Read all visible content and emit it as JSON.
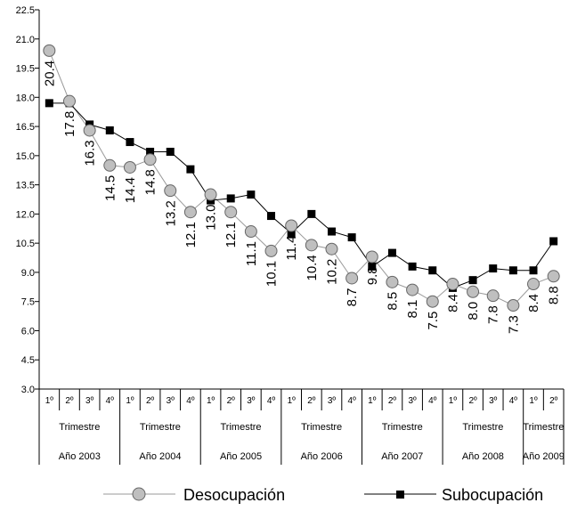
{
  "chart_data": {
    "type": "line",
    "title": "",
    "xlabel": "",
    "ylabel": "",
    "ylim": [
      3.0,
      22.5
    ],
    "y_ticks": [
      "3.0",
      "4.5",
      "6.0",
      "7.5",
      "9.0",
      "10.5",
      "12.0",
      "13.5",
      "15.0",
      "16.5",
      "18.0",
      "19.5",
      "21.0",
      "22.5"
    ],
    "quarter_labels": [
      "1º",
      "2º",
      "3º",
      "4º",
      "1º",
      "2º",
      "3º",
      "4º",
      "1º",
      "2º",
      "3º",
      "4º",
      "1º",
      "2º",
      "3º",
      "4º",
      "1º",
      "2º",
      "3º",
      "4º",
      "1º",
      "2º",
      "3º",
      "4º",
      "1º",
      "2º"
    ],
    "period_label": "Trimestre",
    "years": [
      {
        "label": "Año 2003",
        "quarters": 4
      },
      {
        "label": "Año 2004",
        "quarters": 4
      },
      {
        "label": "Año 2005",
        "quarters": 4
      },
      {
        "label": "Año 2006",
        "quarters": 4
      },
      {
        "label": "Año 2007",
        "quarters": 4
      },
      {
        "label": "Año 2008",
        "quarters": 4
      },
      {
        "label": "Año 2009",
        "quarters": 2
      }
    ],
    "series": [
      {
        "name": "Desocupación",
        "marker": "circle",
        "color": "#bfbfbf",
        "line_color": "#999999",
        "values": [
          20.4,
          17.8,
          16.3,
          14.5,
          14.4,
          14.8,
          13.2,
          12.1,
          13.0,
          12.1,
          11.1,
          10.1,
          11.4,
          10.4,
          10.2,
          8.7,
          9.8,
          8.5,
          8.1,
          7.5,
          8.4,
          8.0,
          7.8,
          7.3,
          8.4,
          8.8
        ],
        "data_labels": [
          "20.4",
          "17.8",
          "16.3",
          "14.5",
          "14.4",
          "14.8",
          "13.2",
          "12.1",
          "13.0",
          "12.1",
          "11.1",
          "10.1",
          "11.4",
          "10.4",
          "10.2",
          "8.7",
          "9.8",
          "8.5",
          "8.1",
          "7.5",
          "8.4",
          "8.0",
          "7.8",
          "7.3",
          "8.4",
          "8.8"
        ]
      },
      {
        "name": "Subocupación",
        "marker": "square",
        "color": "#000000",
        "line_color": "#000000",
        "values": [
          17.7,
          17.7,
          16.6,
          16.3,
          15.7,
          15.2,
          15.2,
          14.3,
          12.7,
          12.8,
          13.0,
          11.9,
          11.0,
          12.0,
          11.1,
          10.8,
          9.3,
          10.0,
          9.3,
          9.1,
          8.2,
          8.6,
          9.2,
          9.1,
          9.1,
          10.6
        ]
      }
    ],
    "grid": false,
    "legend_position": "bottom"
  }
}
